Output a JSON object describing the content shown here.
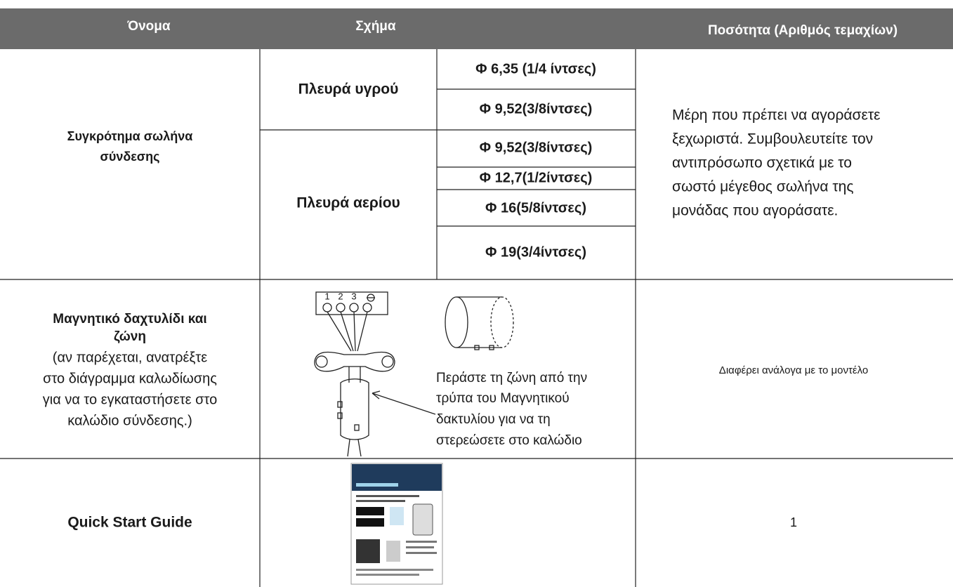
{
  "header": {
    "columns": [
      "Όνομα",
      "Σχήμα",
      "Ποσότητα (Αριθμός τεμαχίων)"
    ]
  },
  "table": {
    "rows": [
      {
        "name": [
          "Συγκρότημα σωλήνα",
          "σύνδεσης"
        ],
        "groups": [
          {
            "side": "Πλευρά υγρού",
            "sizes": [
              "Φ 6,35 (1/4 ίντσες)",
              "Φ 9,52(3/8ίντσες)"
            ]
          },
          {
            "side": "Πλευρά αερίου",
            "sizes": [
              "Φ 9,52(3/8ίντσες)",
              "Φ 12,7(1/2ίντσες)",
              "Φ 16(5/8ίντσες)",
              "Φ 19(3/4ίντσες)"
            ]
          }
        ],
        "quantity": [
          "Μέρη που πρέπει να αγοράσετε",
          "ξεχωριστά. Συμβουλευτείτε τον",
          "αντιπρόσωπο σχετικά με το",
          "σωστό μέγεθος σωλήνα της",
          "μονάδας που αγοράσατε."
        ]
      },
      {
        "name_bold": [
          "Μαγνητικό δαχτυλίδι και",
          "ζώνη"
        ],
        "name_note": [
          "(αν παρέχεται, ανατρέξτε",
          "στο διάγραμμα καλωδίωσης",
          "για να το εγκαταστήσετε στο",
          "καλώδιο σύνδεσης.)"
        ],
        "terminals": [
          "1",
          "2",
          "3"
        ],
        "caption": [
          "Περάστε τη ζώνη από την",
          "τρύπα του Μαγνητικού",
          "δακτυλίου για να τη",
          "στερεώσετε στο καλώδιο"
        ],
        "quantity": "Διαφέρει ανάλογα με το μοντέλο"
      },
      {
        "name": "Quick Start Guide",
        "quantity": "1"
      }
    ]
  }
}
